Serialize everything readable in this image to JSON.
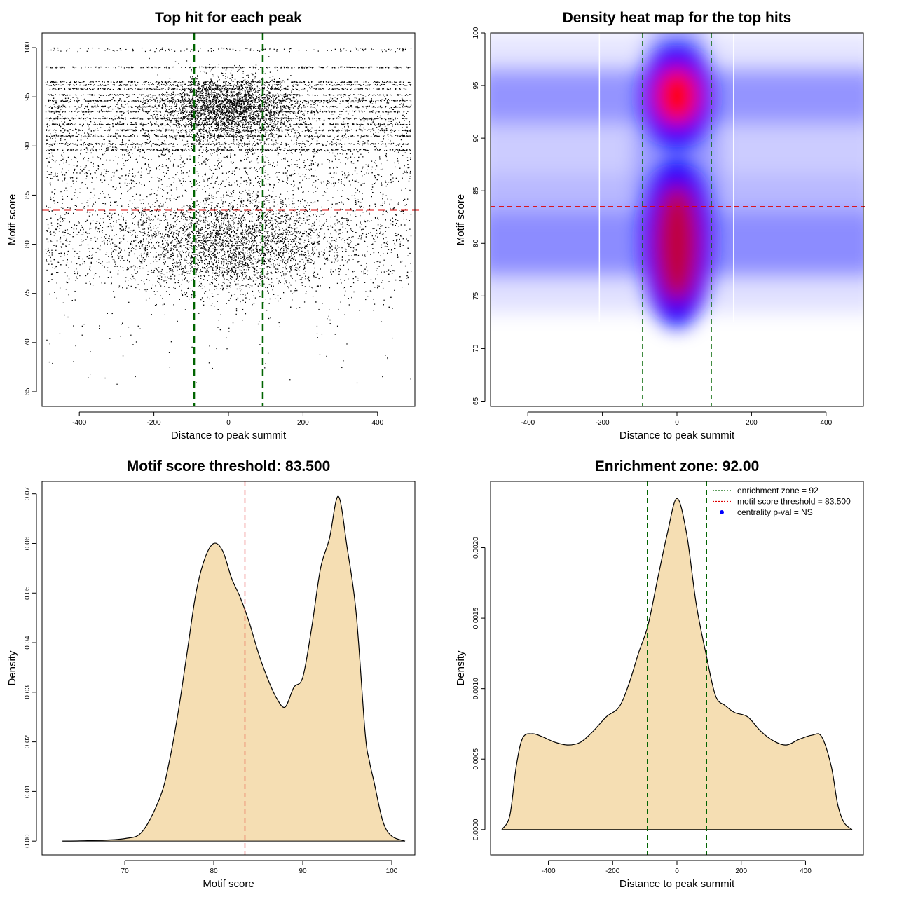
{
  "chart_data": [
    {
      "type": "scatter",
      "title": "Top hit for each peak",
      "xlabel": "Distance to peak summit",
      "ylabel": "Motif score",
      "xlim": [
        -500,
        500
      ],
      "ylim": [
        63.5,
        101.5
      ],
      "xticks": [
        -400,
        -200,
        0,
        200,
        400
      ],
      "yticks": [
        65,
        70,
        75,
        80,
        85,
        90,
        95,
        100
      ],
      "threshold_y": 83.5,
      "enrichment_zone_x": [
        -92,
        92
      ],
      "threshold_color": "#dd0000",
      "zone_color": "#006400",
      "point_color": "#000000",
      "clusters": [
        {
          "x_center": 0,
          "x_spread": 130,
          "y_center": 80,
          "y_spread": 2.6
        },
        {
          "x_center": 0,
          "x_spread": 90,
          "y_center": 93.8,
          "y_spread": 1.6
        }
      ],
      "score_levels": [
        98.0,
        96.5,
        96.2,
        95.8,
        95.2,
        94.6,
        94.0,
        93.5,
        92.8,
        92.2,
        91.6,
        91.0,
        90.2,
        89.6
      ]
    },
    {
      "type": "heatmap",
      "title": "Density heat map for the top hits",
      "xlabel": "Distance to peak summit",
      "ylabel": "Motif score",
      "xlim": [
        -500,
        500
      ],
      "ylim": [
        64.5,
        100
      ],
      "xticks": [
        -400,
        -200,
        0,
        200,
        400
      ],
      "yticks": [
        65,
        70,
        75,
        80,
        85,
        90,
        95,
        100
      ],
      "threshold_y": 83.5,
      "enrichment_zone_x": [
        -92,
        92
      ],
      "hotspots": [
        {
          "x": 0,
          "y": 94,
          "level": "highest"
        },
        {
          "x": 0,
          "y": 80,
          "level": "high"
        }
      ],
      "colors": {
        "low": "#ffffff",
        "mid": "#0000ff",
        "high": "#ff0000"
      }
    },
    {
      "type": "area",
      "title": "Motif score threshold: 83.500",
      "xlabel": "Motif score",
      "ylabel": "Density",
      "xlim": [
        60.7,
        102.6
      ],
      "ylim": [
        -0.0028,
        0.0725
      ],
      "xticks": [
        70,
        80,
        90,
        100
      ],
      "yticks": [
        0.0,
        0.01,
        0.02,
        0.03,
        0.04,
        0.05,
        0.06,
        0.07
      ],
      "ytick_labels": [
        "0.00",
        "0.01",
        "0.02",
        "0.03",
        "0.04",
        "0.05",
        "0.06",
        "0.07"
      ],
      "threshold_x": 83.5,
      "fill_color": "#f5deb3",
      "x": [
        63,
        66,
        70,
        72,
        74,
        75,
        76,
        77,
        78,
        79,
        80,
        81,
        82,
        83,
        84,
        85,
        86,
        87,
        88,
        89,
        90,
        91,
        92,
        93,
        94,
        95,
        96,
        97,
        97.5,
        98,
        99,
        100,
        101.5
      ],
      "values": [
        0,
        0.0001,
        0.0005,
        0.002,
        0.009,
        0.016,
        0.026,
        0.038,
        0.05,
        0.057,
        0.06,
        0.0585,
        0.053,
        0.049,
        0.044,
        0.038,
        0.033,
        0.029,
        0.027,
        0.031,
        0.033,
        0.043,
        0.055,
        0.061,
        0.0695,
        0.059,
        0.046,
        0.022,
        0.016,
        0.012,
        0.004,
        0.001,
        0
      ]
    },
    {
      "type": "area",
      "title": "Enrichment zone: 92.00",
      "xlabel": "Distance to peak summit",
      "ylabel": "Density",
      "xlim": [
        -580,
        580
      ],
      "ylim": [
        -0.00018,
        0.00247
      ],
      "xticks": [
        -400,
        -200,
        0,
        200,
        400
      ],
      "yticks": [
        0.0,
        0.0005,
        0.001,
        0.0015,
        0.002
      ],
      "ytick_labels": [
        "0.0000",
        "0.0005",
        "0.0010",
        "0.0015",
        "0.0020"
      ],
      "enrichment_zone_x": [
        -92,
        92
      ],
      "fill_color": "#f5deb3",
      "x": [
        -545,
        -520,
        -500,
        -480,
        -450,
        -420,
        -380,
        -340,
        -300,
        -260,
        -220,
        -180,
        -150,
        -120,
        -90,
        -60,
        -30,
        0,
        30,
        60,
        90,
        120,
        150,
        180,
        220,
        260,
        300,
        340,
        380,
        420,
        450,
        480,
        500,
        520,
        545
      ],
      "values": [
        0,
        0.0001,
        0.00045,
        0.00065,
        0.00068,
        0.00066,
        0.00062,
        0.0006,
        0.00062,
        0.0007,
        0.0008,
        0.00087,
        0.00103,
        0.00125,
        0.00145,
        0.00178,
        0.0021,
        0.00235,
        0.0021,
        0.0016,
        0.00125,
        0.00095,
        0.00088,
        0.00083,
        0.0008,
        0.0007,
        0.00063,
        0.0006,
        0.00064,
        0.00067,
        0.00066,
        0.00045,
        0.00018,
        5e-05,
        0
      ],
      "legend": {
        "position": "top-right",
        "items": [
          {
            "label": "enrichment zone = 92",
            "style": "dotted",
            "color": "#006400"
          },
          {
            "label": "motif score threshold = 83.500",
            "style": "dotted",
            "color": "#dd0000"
          },
          {
            "label": "centrality p-val = NS",
            "style": "point",
            "color": "#0000ff"
          }
        ]
      }
    }
  ]
}
